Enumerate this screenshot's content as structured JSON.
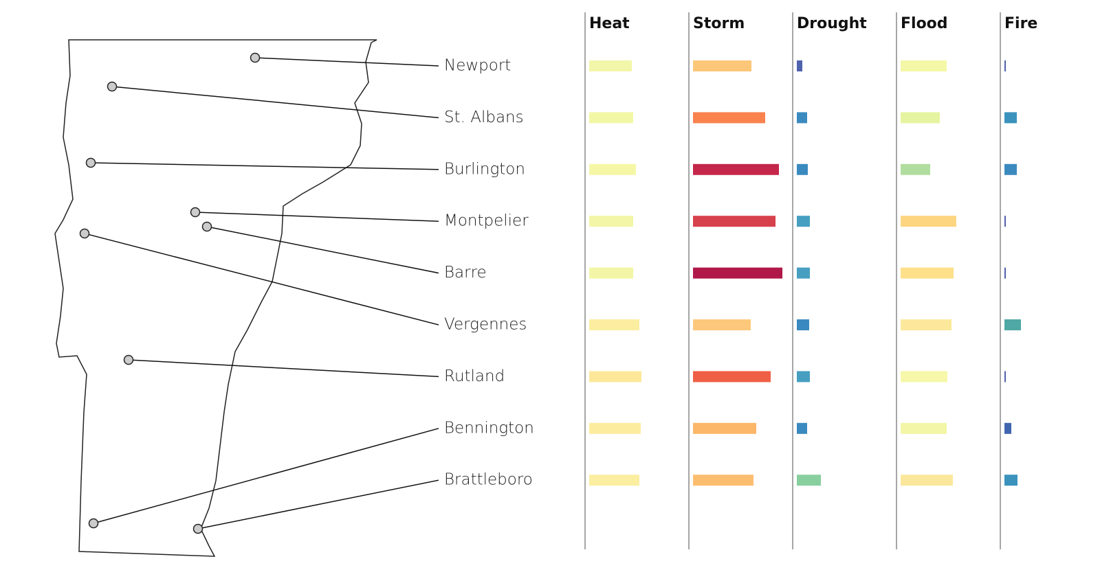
{
  "chart_data": {
    "type": "bar",
    "categories": [
      "Newport",
      "St. Albans",
      "Burlington",
      "Montpelier",
      "Barre",
      "Vergennes",
      "Rutland",
      "Bennington",
      "Brattleboro"
    ],
    "xlim": [
      0,
      150
    ],
    "series": [
      {
        "name": "Heat",
        "values": [
          62,
          64,
          68,
          64,
          64,
          73,
          76,
          75,
          73
        ],
        "colors": [
          "#f2f6a8",
          "#f2f7a6",
          "#f5f7a7",
          "#f2f6a6",
          "#f2f6a6",
          "#fbeea0",
          "#fde89a",
          "#fcec9e",
          "#fbeea1"
        ]
      },
      {
        "name": "Storm",
        "values": [
          85,
          105,
          125,
          120,
          130,
          84,
          113,
          92,
          88
        ],
        "colors": [
          "#fdc77a",
          "#f9824f",
          "#c5274a",
          "#d6414c",
          "#b0184a",
          "#fdc87b",
          "#ef5f46",
          "#fdb768",
          "#fdbd6f"
        ]
      },
      {
        "name": "Drought",
        "values": [
          8,
          15,
          16,
          19,
          19,
          18,
          19,
          15,
          35
        ],
        "colors": [
          "#4f62ad",
          "#3b8abf",
          "#3b8abf",
          "#469fc0",
          "#469fc0",
          "#3b8abf",
          "#469fc0",
          "#3b8abf",
          "#88cf9f"
        ]
      },
      {
        "name": "Flood",
        "values": [
          67,
          57,
          43,
          81,
          77,
          74,
          68,
          67,
          76
        ],
        "colors": [
          "#f4f7a6",
          "#e5f4a0",
          "#b1dd9e",
          "#fdd581",
          "#fee08b",
          "#fbe89b",
          "#f6f7a9",
          "#f2f6a6",
          "#fbe79c"
        ]
      },
      {
        "name": "Fire",
        "values": [
          2,
          18,
          18,
          2,
          2,
          24,
          2,
          10,
          19
        ],
        "colors": [
          "#4f62ad",
          "#3b93bd",
          "#3b8abf",
          "#5060ad",
          "#5060ad",
          "#4fa8a4",
          "#5060ad",
          "#4166b0",
          "#3b93bd"
        ]
      }
    ]
  }
}
